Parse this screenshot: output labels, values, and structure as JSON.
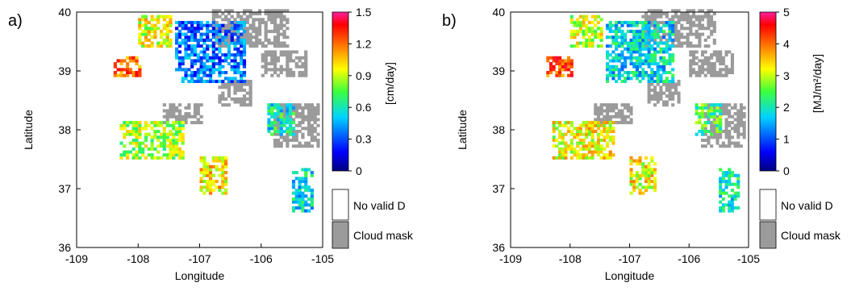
{
  "chart_data": [
    {
      "type": "heatmap",
      "panel_label": "a)",
      "xlabel": "Longitude",
      "ylabel": "Latitude",
      "xlim": [
        -109,
        -105
      ],
      "ylim": [
        36,
        40
      ],
      "x_ticks": [
        "-109",
        "-108",
        "-107",
        "-106",
        "-105"
      ],
      "y_ticks": [
        "36",
        "37",
        "38",
        "39",
        "40"
      ],
      "colorbar": {
        "label": "[cm/day]",
        "range": [
          0,
          1.5
        ],
        "ticks": [
          "0",
          "0.3",
          "0.6",
          "0.9",
          "1.2",
          "1.5"
        ]
      },
      "legend": [
        "No valid D",
        "Cloud mask"
      ],
      "regions": [
        {
          "kind": "cloud",
          "lon": [
            -106.8,
            -105.6
          ],
          "lat": [
            39.4,
            40.0
          ]
        },
        {
          "kind": "cloud",
          "lon": [
            -106.0,
            -105.3
          ],
          "lat": [
            38.9,
            39.3
          ]
        },
        {
          "kind": "cloud",
          "lon": [
            -107.6,
            -107.0
          ],
          "lat": [
            38.1,
            38.4
          ]
        },
        {
          "kind": "cloud",
          "lon": [
            -105.8,
            -105.1
          ],
          "lat": [
            37.7,
            38.4
          ]
        },
        {
          "kind": "cloud",
          "lon": [
            -106.7,
            -106.2
          ],
          "lat": [
            38.4,
            38.8
          ]
        },
        {
          "kind": "data",
          "lon": [
            -107.4,
            -106.3
          ],
          "lat": [
            38.8,
            39.8
          ],
          "value": 0.35
        },
        {
          "kind": "data",
          "lon": [
            -108.0,
            -107.5
          ],
          "lat": [
            39.4,
            39.9
          ],
          "value": 0.95
        },
        {
          "kind": "data",
          "lon": [
            -108.4,
            -108.0
          ],
          "lat": [
            38.9,
            39.2
          ],
          "value": 1.2
        },
        {
          "kind": "data",
          "lon": [
            -108.3,
            -107.3
          ],
          "lat": [
            37.5,
            38.1
          ],
          "value": 0.85
        },
        {
          "kind": "data",
          "lon": [
            -107.0,
            -106.6
          ],
          "lat": [
            36.9,
            37.5
          ],
          "value": 1.0
        },
        {
          "kind": "data",
          "lon": [
            -105.9,
            -105.5
          ],
          "lat": [
            37.9,
            38.4
          ],
          "value": 0.6
        },
        {
          "kind": "data",
          "lon": [
            -105.5,
            -105.2
          ],
          "lat": [
            36.6,
            37.3
          ],
          "value": 0.55
        }
      ]
    },
    {
      "type": "heatmap",
      "panel_label": "b)",
      "xlabel": "Longitude",
      "ylabel": "Latitude",
      "xlim": [
        -109,
        -105
      ],
      "ylim": [
        36,
        40
      ],
      "x_ticks": [
        "-109",
        "-108",
        "-107",
        "-106",
        "-105"
      ],
      "y_ticks": [
        "36",
        "37",
        "38",
        "39",
        "40"
      ],
      "colorbar": {
        "label": "[MJ/m²/day]",
        "range": [
          0,
          5
        ],
        "ticks": [
          "0",
          "1",
          "2",
          "3",
          "4",
          "5"
        ]
      },
      "legend": [
        "No valid D",
        "Cloud mask"
      ],
      "regions": [
        {
          "kind": "cloud",
          "lon": [
            -106.8,
            -105.6
          ],
          "lat": [
            39.4,
            40.0
          ]
        },
        {
          "kind": "cloud",
          "lon": [
            -106.0,
            -105.3
          ],
          "lat": [
            38.9,
            39.3
          ]
        },
        {
          "kind": "cloud",
          "lon": [
            -107.6,
            -107.0
          ],
          "lat": [
            38.1,
            38.4
          ]
        },
        {
          "kind": "cloud",
          "lon": [
            -105.8,
            -105.1
          ],
          "lat": [
            37.7,
            38.4
          ]
        },
        {
          "kind": "cloud",
          "lon": [
            -106.7,
            -106.2
          ],
          "lat": [
            38.4,
            38.8
          ]
        },
        {
          "kind": "data",
          "lon": [
            -107.4,
            -106.3
          ],
          "lat": [
            38.8,
            39.8
          ],
          "value": 1.8
        },
        {
          "kind": "data",
          "lon": [
            -108.0,
            -107.5
          ],
          "lat": [
            39.4,
            39.9
          ],
          "value": 3.0
        },
        {
          "kind": "data",
          "lon": [
            -108.4,
            -108.0
          ],
          "lat": [
            38.9,
            39.2
          ],
          "value": 4.2
        },
        {
          "kind": "data",
          "lon": [
            -108.3,
            -107.3
          ],
          "lat": [
            37.5,
            38.1
          ],
          "value": 3.2
        },
        {
          "kind": "data",
          "lon": [
            -107.0,
            -106.6
          ],
          "lat": [
            36.9,
            37.5
          ],
          "value": 3.2
        },
        {
          "kind": "data",
          "lon": [
            -105.9,
            -105.5
          ],
          "lat": [
            37.9,
            38.4
          ],
          "value": 2.4
        },
        {
          "kind": "data",
          "lon": [
            -105.5,
            -105.2
          ],
          "lat": [
            36.6,
            37.3
          ],
          "value": 2.0
        }
      ]
    }
  ]
}
